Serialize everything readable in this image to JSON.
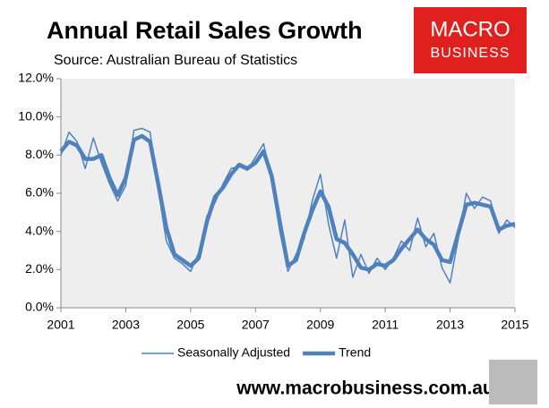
{
  "chart_data": {
    "type": "line",
    "title": "Annual Retail Sales Growth",
    "subtitle": "Source: Australian Bureau of Statistics",
    "logo": [
      "MACRO",
      "BUSINESS"
    ],
    "footer": "www.macrobusiness.com.au",
    "x": [
      2001,
      2001.25,
      2001.5,
      2001.75,
      2002,
      2002.25,
      2002.5,
      2002.75,
      2003,
      2003.25,
      2003.5,
      2003.75,
      2004,
      2004.25,
      2004.5,
      2004.75,
      2005,
      2005.25,
      2005.5,
      2005.75,
      2006,
      2006.25,
      2006.5,
      2006.75,
      2007,
      2007.25,
      2007.5,
      2007.75,
      2008,
      2008.25,
      2008.5,
      2008.75,
      2009,
      2009.25,
      2009.5,
      2009.75,
      2010,
      2010.25,
      2010.5,
      2010.75,
      2011,
      2011.25,
      2011.5,
      2011.75,
      2012,
      2012.25,
      2012.5,
      2012.75,
      2013,
      2013.25,
      2013.5,
      2013.75,
      2014,
      2014.25,
      2014.5,
      2014.75,
      2015
    ],
    "series": [
      {
        "name": "Seasonally Adjusted",
        "color": "#4f81bd",
        "width": 1.5,
        "values": [
          8.0,
          9.2,
          8.7,
          7.3,
          8.9,
          7.6,
          6.5,
          5.6,
          6.4,
          9.3,
          9.4,
          9.2,
          6.2,
          3.5,
          2.6,
          2.3,
          1.9,
          2.9,
          4.8,
          5.5,
          6.5,
          7.3,
          7.4,
          7.2,
          7.9,
          8.6,
          6.6,
          4.0,
          1.9,
          2.8,
          3.6,
          5.6,
          7.0,
          4.4,
          2.6,
          4.6,
          1.6,
          2.8,
          1.8,
          2.6,
          2.0,
          2.6,
          3.5,
          3.0,
          4.7,
          3.2,
          3.9,
          2.1,
          1.3,
          3.6,
          6.0,
          5.2,
          5.8,
          5.6,
          3.9,
          4.6,
          4.2
        ]
      },
      {
        "name": "Trend",
        "color": "#4f81bd",
        "width": 4.5,
        "values": [
          8.2,
          8.7,
          8.5,
          7.8,
          7.8,
          8.0,
          6.8,
          5.9,
          6.8,
          8.8,
          9.0,
          8.7,
          6.5,
          4.2,
          2.8,
          2.5,
          2.2,
          2.6,
          4.5,
          5.8,
          6.3,
          7.0,
          7.5,
          7.3,
          7.6,
          8.2,
          6.9,
          4.5,
          2.2,
          2.5,
          3.9,
          5.1,
          6.1,
          5.3,
          3.6,
          3.4,
          2.8,
          2.1,
          2.0,
          2.3,
          2.2,
          2.5,
          3.1,
          3.6,
          4.1,
          3.6,
          3.3,
          2.5,
          2.4,
          3.9,
          5.4,
          5.5,
          5.4,
          5.3,
          4.1,
          4.3,
          4.4
        ]
      }
    ],
    "xlim": [
      2001,
      2015
    ],
    "xticks": [
      2001,
      2003,
      2005,
      2007,
      2009,
      2011,
      2013,
      2015
    ],
    "ylim": [
      0,
      12
    ],
    "yticks": [
      {
        "value": 0,
        "label": "0.0%"
      },
      {
        "value": 2,
        "label": "2.0%"
      },
      {
        "value": 4,
        "label": "4.0%"
      },
      {
        "value": 6,
        "label": "6.0%"
      },
      {
        "value": 8,
        "label": "8.0%"
      },
      {
        "value": 10,
        "label": "10.0%"
      },
      {
        "value": 12,
        "label": "12.0%"
      }
    ],
    "legend": "bottom"
  }
}
